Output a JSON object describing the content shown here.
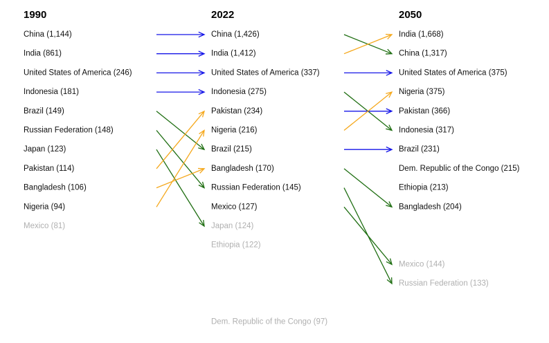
{
  "chart_data": {
    "type": "slopegraph",
    "columns": [
      {
        "title": "1990",
        "entries": [
          {
            "label": "China (1,144)",
            "country": "China",
            "value": 1144,
            "rank": 1,
            "in_top10": true
          },
          {
            "label": "India (861)",
            "country": "India",
            "value": 861,
            "rank": 2,
            "in_top10": true
          },
          {
            "label": "United States of America (246)",
            "country": "United States of America",
            "value": 246,
            "rank": 3,
            "in_top10": true
          },
          {
            "label": "Indonesia (181)",
            "country": "Indonesia",
            "value": 181,
            "rank": 4,
            "in_top10": true
          },
          {
            "label": "Brazil (149)",
            "country": "Brazil",
            "value": 149,
            "rank": 5,
            "in_top10": true
          },
          {
            "label": "Russian Federation (148)",
            "country": "Russian Federation",
            "value": 148,
            "rank": 6,
            "in_top10": true
          },
          {
            "label": "Japan (123)",
            "country": "Japan",
            "value": 123,
            "rank": 7,
            "in_top10": true
          },
          {
            "label": "Pakistan (114)",
            "country": "Pakistan",
            "value": 114,
            "rank": 8,
            "in_top10": true
          },
          {
            "label": "Bangladesh (106)",
            "country": "Bangladesh",
            "value": 106,
            "rank": 9,
            "in_top10": true
          },
          {
            "label": "Nigeria (94)",
            "country": "Nigeria",
            "value": 94,
            "rank": 10,
            "in_top10": true
          },
          {
            "label": "Mexico (81)",
            "country": "Mexico",
            "value": 81,
            "rank": 11,
            "in_top10": false
          }
        ]
      },
      {
        "title": "2022",
        "entries": [
          {
            "label": "China (1,426)",
            "country": "China",
            "value": 1426,
            "rank": 1,
            "in_top10": true
          },
          {
            "label": "India (1,412)",
            "country": "India",
            "value": 1412,
            "rank": 2,
            "in_top10": true
          },
          {
            "label": "United States of America (337)",
            "country": "United States of America",
            "value": 337,
            "rank": 3,
            "in_top10": true
          },
          {
            "label": "Indonesia (275)",
            "country": "Indonesia",
            "value": 275,
            "rank": 4,
            "in_top10": true
          },
          {
            "label": "Pakistan (234)",
            "country": "Pakistan",
            "value": 234,
            "rank": 5,
            "in_top10": true
          },
          {
            "label": "Nigeria (216)",
            "country": "Nigeria",
            "value": 216,
            "rank": 6,
            "in_top10": true
          },
          {
            "label": "Brazil (215)",
            "country": "Brazil",
            "value": 215,
            "rank": 7,
            "in_top10": true
          },
          {
            "label": "Bangladesh (170)",
            "country": "Bangladesh",
            "value": 170,
            "rank": 8,
            "in_top10": true
          },
          {
            "label": "Russian Federation (145)",
            "country": "Russian Federation",
            "value": 145,
            "rank": 9,
            "in_top10": true
          },
          {
            "label": "Mexico (127)",
            "country": "Mexico",
            "value": 127,
            "rank": 10,
            "in_top10": true
          },
          {
            "label": "Japan (124)",
            "country": "Japan",
            "value": 124,
            "rank": 11,
            "in_top10": false
          },
          {
            "label": "Ethiopia (122)",
            "country": "Ethiopia",
            "value": 122,
            "rank": 12,
            "in_top10": false
          },
          {
            "label": "Dem. Republic of the Congo (97)",
            "country": "Dem. Republic of the Congo",
            "value": 97,
            "rank": 16,
            "in_top10": false
          }
        ]
      },
      {
        "title": "2050",
        "entries": [
          {
            "label": "India (1,668)",
            "country": "India",
            "value": 1668,
            "rank": 1,
            "in_top10": true
          },
          {
            "label": "China (1,317)",
            "country": "China",
            "value": 1317,
            "rank": 2,
            "in_top10": true
          },
          {
            "label": "United States of America (375)",
            "country": "United States of America",
            "value": 375,
            "rank": 3,
            "in_top10": true
          },
          {
            "label": "Nigeria (375)",
            "country": "Nigeria",
            "value": 375,
            "rank": 4,
            "in_top10": true
          },
          {
            "label": "Pakistan (366)",
            "country": "Pakistan",
            "value": 366,
            "rank": 5,
            "in_top10": true
          },
          {
            "label": "Indonesia (317)",
            "country": "Indonesia",
            "value": 317,
            "rank": 6,
            "in_top10": true
          },
          {
            "label": "Brazil (231)",
            "country": "Brazil",
            "value": 231,
            "rank": 7,
            "in_top10": true
          },
          {
            "label": "Dem. Republic of the Congo (215)",
            "country": "Dem. Republic of the Congo",
            "value": 215,
            "rank": 8,
            "in_top10": true
          },
          {
            "label": "Ethiopia (213)",
            "country": "Ethiopia",
            "value": 213,
            "rank": 9,
            "in_top10": true
          },
          {
            "label": "Bangladesh (204)",
            "country": "Bangladesh",
            "value": 204,
            "rank": 10,
            "in_top10": true
          },
          {
            "label": "Mexico (144)",
            "country": "Mexico",
            "value": 144,
            "rank": 13,
            "in_top10": false
          },
          {
            "label": "Russian Federation (133)",
            "country": "Russian Federation",
            "value": 133,
            "rank": 14,
            "in_top10": false
          }
        ]
      }
    ],
    "colors": {
      "same_rank": "#1515e8",
      "rank_up": "#f5a81c",
      "rank_down": "#1f6e12",
      "top10_text": "#111111",
      "outside_text": "#b0b0b0"
    }
  }
}
